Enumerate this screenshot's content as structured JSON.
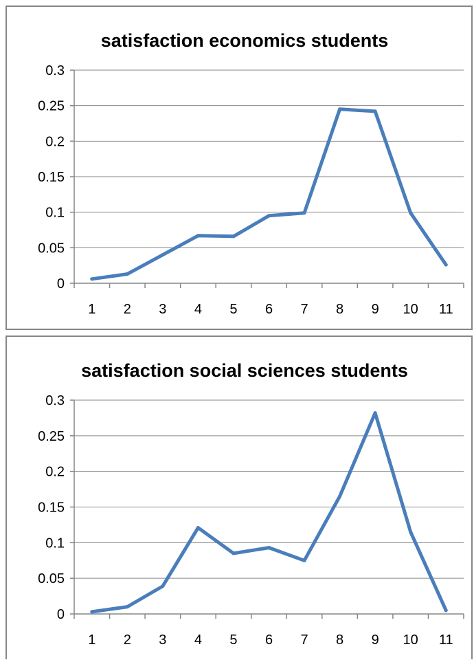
{
  "chart_data": [
    {
      "type": "line",
      "title": "satisfaction economics students",
      "xlabel": "",
      "ylabel": "",
      "categories": [
        "1",
        "2",
        "3",
        "4",
        "5",
        "6",
        "7",
        "8",
        "9",
        "10",
        "11"
      ],
      "yticks": [
        "0",
        "0.05",
        "0.1",
        "0.15",
        "0.2",
        "0.25",
        "0.3"
      ],
      "ylim": [
        0,
        0.3
      ],
      "grid": true,
      "legend": "none",
      "series": [
        {
          "values": [
            0.006,
            0.013,
            0.04,
            0.067,
            0.066,
            0.095,
            0.099,
            0.245,
            0.242,
            0.099,
            0.026
          ],
          "color": "#4a7ebb"
        }
      ]
    },
    {
      "type": "line",
      "title": "satisfaction social sciences students",
      "xlabel": "",
      "ylabel": "",
      "categories": [
        "1",
        "2",
        "3",
        "4",
        "5",
        "6",
        "7",
        "8",
        "9",
        "10",
        "11"
      ],
      "yticks": [
        "0",
        "0.05",
        "0.1",
        "0.15",
        "0.2",
        "0.25",
        "0.3"
      ],
      "ylim": [
        0,
        0.3
      ],
      "grid": true,
      "legend": "none",
      "series": [
        {
          "values": [
            0.003,
            0.01,
            0.039,
            0.121,
            0.085,
            0.093,
            0.075,
            0.165,
            0.282,
            0.115,
            0.005
          ],
          "color": "#4a7ebb"
        }
      ]
    }
  ]
}
